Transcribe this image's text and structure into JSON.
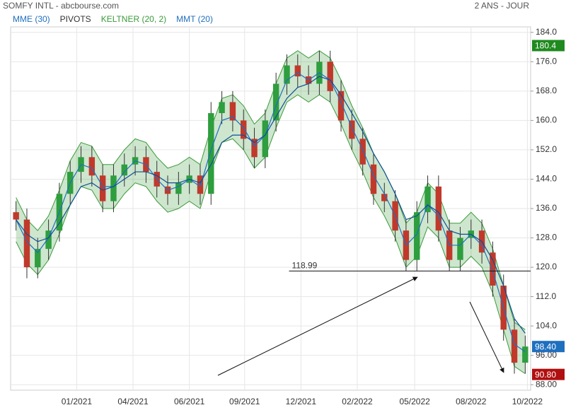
{
  "chart_data": {
    "type": "candlestick",
    "title": "SOMFY INTL - abcbourse.com",
    "period": "2 ANS - JOUR",
    "indicators": [
      {
        "name": "MME (30)",
        "color": "#1f6fbf"
      },
      {
        "name": "PIVOTS",
        "color": "#333333"
      },
      {
        "name": "KELTNER (20, 2)",
        "color": "#3a9a3a"
      },
      {
        "name": "MMT (20)",
        "color": "#1f6fbf"
      }
    ],
    "x": [
      0,
      1,
      2,
      3,
      4,
      5,
      6,
      7,
      8,
      9,
      10,
      11,
      12,
      13,
      14,
      15,
      16,
      17,
      18,
      19,
      20,
      21,
      22,
      23,
      24,
      25,
      26,
      27,
      28,
      29,
      30,
      31,
      32,
      33,
      34,
      35,
      36,
      37,
      38,
      39,
      40,
      41,
      42,
      43,
      44,
      45,
      46,
      47
    ],
    "open": [
      135,
      133,
      120,
      125,
      130,
      140,
      146,
      150,
      145,
      138,
      145,
      148,
      150,
      146,
      142,
      140,
      143,
      145,
      140,
      162,
      165,
      160,
      155,
      150,
      160,
      170,
      175,
      172,
      170,
      176,
      168,
      160,
      155,
      148,
      140,
      138,
      130,
      122,
      135,
      142,
      130,
      122,
      128,
      130,
      124,
      115,
      103,
      94
    ],
    "high": [
      138,
      136,
      128,
      133,
      143,
      149,
      153,
      153,
      148,
      148,
      151,
      153,
      153,
      149,
      145,
      146,
      148,
      148,
      165,
      168,
      168,
      163,
      158,
      163,
      173,
      178,
      178,
      175,
      179,
      179,
      171,
      163,
      158,
      151,
      143,
      141,
      133,
      138,
      145,
      145,
      133,
      131,
      133,
      133,
      127,
      118,
      106,
      101.4
    ],
    "low": [
      130,
      117,
      117,
      122,
      127,
      137,
      143,
      142,
      135,
      135,
      142,
      145,
      143,
      139,
      137,
      137,
      140,
      137,
      137,
      159,
      157,
      152,
      147,
      147,
      157,
      167,
      169,
      167,
      167,
      165,
      157,
      152,
      145,
      137,
      135,
      127,
      119,
      119,
      132,
      127,
      119,
      119,
      125,
      121,
      112,
      100,
      91,
      91
    ],
    "close": [
      133,
      120,
      125,
      130,
      140,
      146,
      150,
      145,
      138,
      145,
      148,
      150,
      146,
      142,
      140,
      143,
      145,
      140,
      162,
      165,
      160,
      155,
      150,
      160,
      170,
      175,
      172,
      170,
      176,
      168,
      160,
      155,
      148,
      140,
      138,
      130,
      122,
      135,
      142,
      130,
      122,
      128,
      130,
      124,
      115,
      103,
      94,
      98.4
    ],
    "up_color": "#2e9e3e",
    "down_color": "#c0392b",
    "keltner_upper": [
      139,
      133,
      130,
      134,
      141,
      149,
      154,
      153,
      148,
      148,
      152,
      155,
      154,
      150,
      147,
      148,
      150,
      148,
      158,
      166,
      167,
      164,
      159,
      162,
      170,
      177,
      179,
      177,
      179,
      177,
      171,
      164,
      158,
      151,
      146,
      140,
      132,
      135,
      143,
      140,
      132,
      132,
      135,
      132,
      125,
      115,
      105,
      103
    ],
    "keltner_lower": [
      127,
      121,
      118,
      122,
      129,
      137,
      142,
      141,
      136,
      136,
      140,
      143,
      142,
      138,
      135,
      136,
      138,
      136,
      146,
      154,
      155,
      152,
      147,
      150,
      158,
      165,
      167,
      165,
      167,
      165,
      159,
      152,
      146,
      139,
      134,
      128,
      120,
      123,
      131,
      128,
      120,
      120,
      123,
      120,
      113,
      103,
      93,
      91
    ],
    "mmt": [
      133,
      127,
      124,
      128,
      135,
      143,
      148,
      147,
      142,
      142,
      146,
      149,
      148,
      144,
      141,
      142,
      144,
      142,
      152,
      160,
      161,
      158,
      153,
      156,
      164,
      171,
      173,
      171,
      173,
      171,
      165,
      158,
      152,
      145,
      140,
      134,
      126,
      129,
      137,
      134,
      126,
      126,
      129,
      126,
      119,
      109,
      99,
      97
    ],
    "mme": [
      133,
      129,
      127,
      128,
      132,
      137,
      142,
      143,
      141,
      142,
      144,
      146,
      146,
      145,
      143,
      143,
      144,
      143,
      148,
      154,
      156,
      156,
      154,
      156,
      161,
      166,
      169,
      170,
      172,
      171,
      167,
      162,
      157,
      151,
      146,
      140,
      133,
      134,
      137,
      135,
      130,
      129,
      129,
      127,
      122,
      115,
      106,
      102
    ],
    "xlim": [
      -0.5,
      47.5
    ],
    "xticks": [
      {
        "value": 5.6,
        "label": "01/2021"
      },
      {
        "value": 10.8,
        "label": "04/2021"
      },
      {
        "value": 16.0,
        "label": "06/2021"
      },
      {
        "value": 21.1,
        "label": "09/2021"
      },
      {
        "value": 26.3,
        "label": "12/2021"
      },
      {
        "value": 31.5,
        "label": "02/2022"
      },
      {
        "value": 36.8,
        "label": "05/2022"
      },
      {
        "value": 42.0,
        "label": "08/2022"
      },
      {
        "value": 47.2,
        "label": "10/2022"
      }
    ],
    "ylim": [
      86.5,
      185.5
    ],
    "yticks": [
      {
        "value": 88,
        "label": "88.00"
      },
      {
        "value": 96,
        "label": "96.00"
      },
      {
        "value": 104,
        "label": "104.0"
      },
      {
        "value": 112,
        "label": "112.0"
      },
      {
        "value": 120,
        "label": "120.0"
      },
      {
        "value": 128,
        "label": "128.0"
      },
      {
        "value": 136,
        "label": "136.0"
      },
      {
        "value": 144,
        "label": "144.0"
      },
      {
        "value": 152,
        "label": "152.0"
      },
      {
        "value": 160,
        "label": "160.0"
      },
      {
        "value": 168,
        "label": "168.0"
      },
      {
        "value": 176,
        "label": "176.0"
      },
      {
        "value": 184,
        "label": "184.0"
      }
    ],
    "grid": true,
    "hlines": [
      {
        "value": 118.99,
        "label": "118.99",
        "start": 25.2
      }
    ],
    "price_tags": [
      {
        "value": 180.4,
        "label": "180.4",
        "color": "#1f8a1f"
      },
      {
        "value": 98.4,
        "label": "98.40",
        "color": "#1f6fbf"
      },
      {
        "value": 90.8,
        "label": "90.80",
        "color": "#b01010"
      }
    ]
  }
}
